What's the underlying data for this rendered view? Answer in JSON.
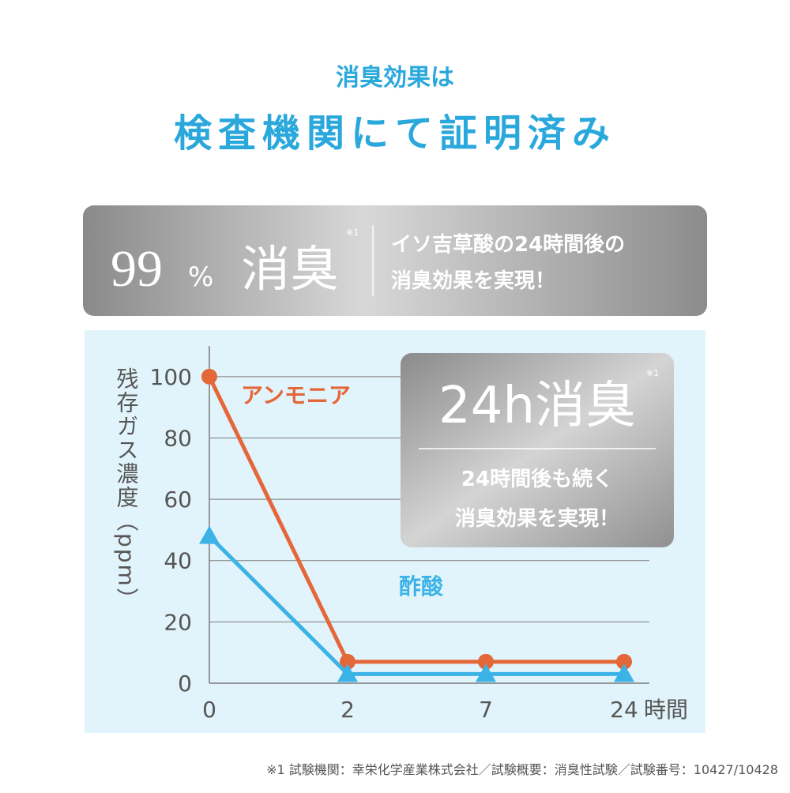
{
  "header": {
    "subtitle": "消臭効果は",
    "title": "検査機関にて証明済み"
  },
  "banner": {
    "big_number": "99",
    "percent": "%",
    "big_text": "消臭",
    "note_mark": "※1",
    "line1": "イソ吉草酸の24時間後の",
    "line2": "消臭効果を実現！"
  },
  "callout": {
    "big": "24h消臭",
    "note_mark": "※1",
    "line1": "24時間後も続く",
    "line2": "消臭効果を実現！"
  },
  "chart_data": {
    "type": "line",
    "y_label": "残存ガス濃度（ppm）",
    "x_unit": "時間",
    "categories": [
      "0",
      "2",
      "7",
      "24"
    ],
    "series": [
      {
        "name": "アンモニア",
        "color": "#e4673a",
        "marker": "circle",
        "values": [
          100,
          7,
          7,
          7
        ]
      },
      {
        "name": "酢酸",
        "color": "#3cb3e6",
        "marker": "triangle",
        "values": [
          48,
          3,
          3,
          3
        ]
      }
    ],
    "ylim": [
      0,
      110
    ],
    "yticks": [
      0,
      20,
      40,
      60,
      80,
      100
    ],
    "grid": true
  },
  "footnote": "※1 試験機関：幸栄化学産業株式会社／試験概要：消臭性試験／試験番号：10427/10428"
}
